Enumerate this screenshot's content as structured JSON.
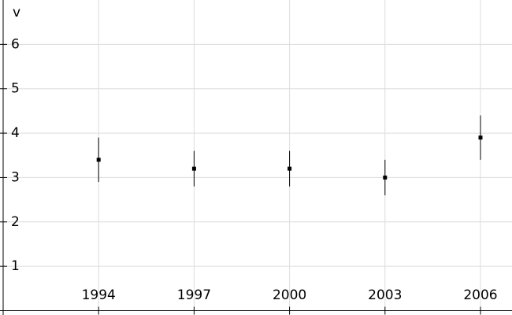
{
  "chart_data": {
    "type": "errorbar",
    "y_label": "v",
    "x": [
      1994,
      1997,
      2000,
      2003,
      2006
    ],
    "values": [
      3.4,
      3.2,
      3.2,
      3.0,
      3.9
    ],
    "errors": [
      0.5,
      0.4,
      0.4,
      0.4,
      0.5
    ],
    "color": "#000000",
    "xlim": [
      1991,
      2007
    ],
    "xticks": [
      1994,
      1997,
      2000,
      2003,
      2006
    ],
    "ylim": [
      0,
      7
    ],
    "yticks": [
      1,
      2,
      3,
      4,
      5,
      6
    ],
    "grid": true
  }
}
